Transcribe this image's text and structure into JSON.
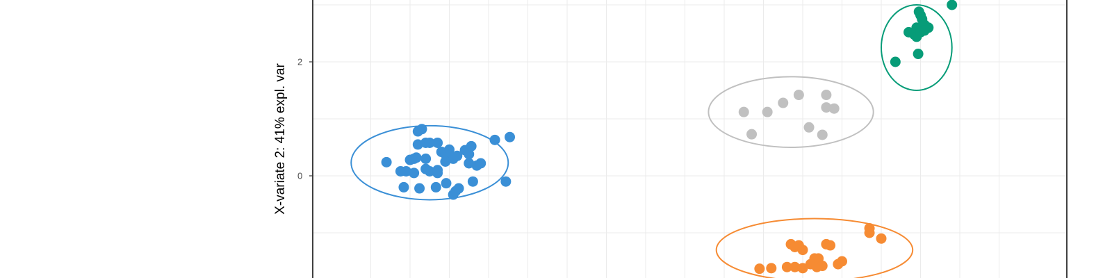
{
  "chart_data": {
    "type": "scatter",
    "title": "",
    "xlabel": "",
    "ylabel": "X-variate 2: 41% expl. var",
    "xlim": [
      -2.7,
      5.5
    ],
    "ylim": [
      -1.65,
      3.1
    ],
    "y_ticks": [
      0,
      2
    ],
    "grid": true,
    "colors": {
      "blue": "#3a8fd6",
      "grey": "#c0c0c0",
      "green": "#079c78",
      "orange": "#f68b33"
    },
    "series": [
      {
        "color": "#3a8fd6",
        "ellipse": {
          "center": [
            -1.75,
            0.23
          ],
          "rx": 1.0,
          "ry": 0.65
        },
        "points": [
          [
            -2.3,
            0.24
          ],
          [
            -1.85,
            0.82
          ],
          [
            -1.9,
            0.78
          ],
          [
            -1.9,
            0.55
          ],
          [
            -1.8,
            0.58
          ],
          [
            -1.75,
            0.58
          ],
          [
            -1.65,
            0.58
          ],
          [
            -1.95,
            0.3
          ],
          [
            -2.0,
            0.28
          ],
          [
            -1.92,
            0.32
          ],
          [
            -1.8,
            0.3
          ],
          [
            -1.6,
            0.42
          ],
          [
            -1.55,
            0.38
          ],
          [
            -1.5,
            0.46
          ],
          [
            -1.45,
            0.3
          ],
          [
            -1.4,
            0.35
          ],
          [
            -1.55,
            0.25
          ],
          [
            -1.25,
            0.38
          ],
          [
            -1.3,
            0.45
          ],
          [
            -1.22,
            0.52
          ],
          [
            -1.25,
            0.22
          ],
          [
            -1.15,
            0.18
          ],
          [
            -1.1,
            0.22
          ],
          [
            -1.95,
            0.05
          ],
          [
            -2.05,
            0.08
          ],
          [
            -2.12,
            0.08
          ],
          [
            -1.8,
            0.12
          ],
          [
            -1.75,
            0.08
          ],
          [
            -1.65,
            0.05
          ],
          [
            -1.65,
            0.1
          ],
          [
            -2.08,
            -0.2
          ],
          [
            -1.88,
            -0.22
          ],
          [
            -1.67,
            -0.2
          ],
          [
            -1.54,
            -0.13
          ],
          [
            -1.45,
            -0.33
          ],
          [
            -1.42,
            -0.27
          ],
          [
            -1.38,
            -0.22
          ],
          [
            -1.2,
            -0.1
          ],
          [
            -0.92,
            0.63
          ],
          [
            -0.73,
            0.68
          ],
          [
            -0.78,
            -0.1
          ]
        ]
      },
      {
        "color": "#c0c0c0",
        "ellipse": {
          "center": [
            2.85,
            1.12
          ],
          "rx": 1.05,
          "ry": 0.62
        },
        "points": [
          [
            2.25,
            1.12
          ],
          [
            2.55,
            1.12
          ],
          [
            2.75,
            1.28
          ],
          [
            2.95,
            1.42
          ],
          [
            3.3,
            1.42
          ],
          [
            3.3,
            1.2
          ],
          [
            3.4,
            1.18
          ],
          [
            2.35,
            0.73
          ],
          [
            3.08,
            0.85
          ],
          [
            3.25,
            0.72
          ]
        ]
      },
      {
        "color": "#079c78",
        "ellipse": {
          "center": [
            4.45,
            2.25
          ],
          "rx": 0.45,
          "ry": 0.75
        },
        "points": [
          [
            4.48,
            2.88
          ],
          [
            4.5,
            2.82
          ],
          [
            4.52,
            2.75
          ],
          [
            4.55,
            2.65
          ],
          [
            4.45,
            2.6
          ],
          [
            4.6,
            2.6
          ],
          [
            4.35,
            2.52
          ],
          [
            4.42,
            2.48
          ],
          [
            4.45,
            2.44
          ],
          [
            4.5,
            2.52
          ],
          [
            4.55,
            2.55
          ],
          [
            4.9,
            3.0
          ],
          [
            4.18,
            2.0
          ],
          [
            4.47,
            2.14
          ]
        ]
      },
      {
        "color": "#f68b33",
        "ellipse": {
          "center": [
            3.15,
            -1.3
          ],
          "rx": 1.25,
          "ry": 0.55
        },
        "points": [
          [
            2.85,
            -1.2
          ],
          [
            2.9,
            -1.25
          ],
          [
            2.95,
            -1.22
          ],
          [
            3.0,
            -1.3
          ],
          [
            3.3,
            -1.2
          ],
          [
            3.35,
            -1.22
          ],
          [
            3.15,
            -1.45
          ],
          [
            3.2,
            -1.45
          ],
          [
            3.1,
            -1.55
          ],
          [
            3.18,
            -1.6
          ],
          [
            3.25,
            -1.58
          ],
          [
            3.45,
            -1.55
          ],
          [
            3.5,
            -1.5
          ],
          [
            2.45,
            -1.63
          ],
          [
            2.6,
            -1.62
          ],
          [
            2.8,
            -1.6
          ],
          [
            2.9,
            -1.6
          ],
          [
            3.0,
            -1.62
          ],
          [
            3.85,
            -0.92
          ],
          [
            4.0,
            -1.1
          ],
          [
            3.85,
            -1.0
          ]
        ]
      }
    ]
  }
}
